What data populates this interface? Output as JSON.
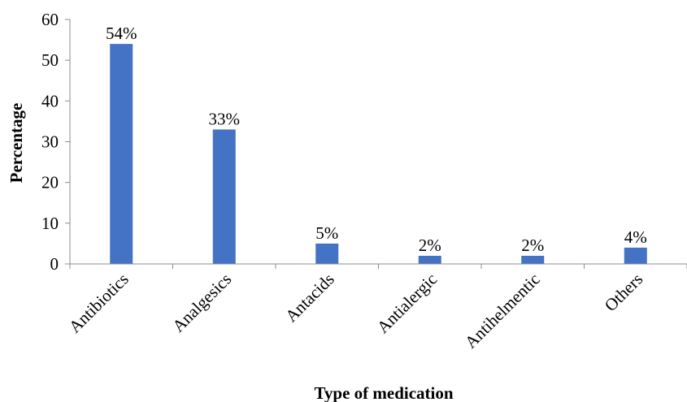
{
  "chart_data": {
    "type": "bar",
    "categories": [
      "Antibiotics",
      "Analgesics",
      "Antacids",
      "Antialergic",
      "Antihelmentic",
      "Others"
    ],
    "values": [
      54,
      33,
      5,
      2,
      2,
      4
    ],
    "data_labels": [
      "54%",
      "33%",
      "5%",
      "2%",
      "2%",
      "4%"
    ],
    "xlabel": "Type of medication",
    "ylabel": "Percentage",
    "ylim": [
      0,
      60
    ],
    "yticks": [
      0,
      10,
      20,
      30,
      40,
      50,
      60
    ],
    "grid": false,
    "bar_color": "#4472C4"
  }
}
